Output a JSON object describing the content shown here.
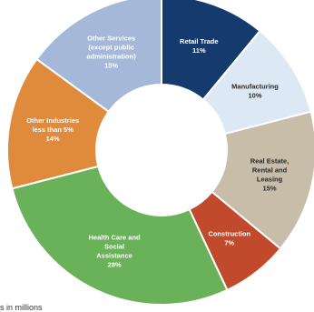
{
  "chart_data": {
    "type": "pie",
    "donut": true,
    "slices": [
      {
        "label": [
          "Retail Trade",
          "11%"
        ],
        "value": 11,
        "color": "#143a6e",
        "text_color": "#ffffff"
      },
      {
        "label": [
          "Manufacturing",
          "10%"
        ],
        "value": 10,
        "color": "#dce9f5",
        "text_color": "#2a2a2a"
      },
      {
        "label": [
          "Real Estate,",
          "Rental and",
          "Leasing",
          "15%"
        ],
        "value": 15,
        "color": "#c7bda9",
        "text_color": "#2a2a2a"
      },
      {
        "label": [
          "Construction",
          "7%"
        ],
        "value": 7,
        "color": "#c14a2c",
        "text_color": "#ffffff"
      },
      {
        "label": [
          "Health Care and",
          "Social",
          "Assistance",
          "28%"
        ],
        "value": 28,
        "color": "#6ab25a",
        "text_color": "#ffffff"
      },
      {
        "label": [
          "Other Industries",
          "less than 5%",
          "14%"
        ],
        "value": 14,
        "color": "#e08a3b",
        "text_color": "#ffffff"
      },
      {
        "label": [
          "Other Services",
          "(except public",
          "administration)",
          "15%"
        ],
        "value": 15,
        "color": "#a5b8d9",
        "text_color": "#ffffff"
      }
    ]
  },
  "footnote": "s in millions"
}
